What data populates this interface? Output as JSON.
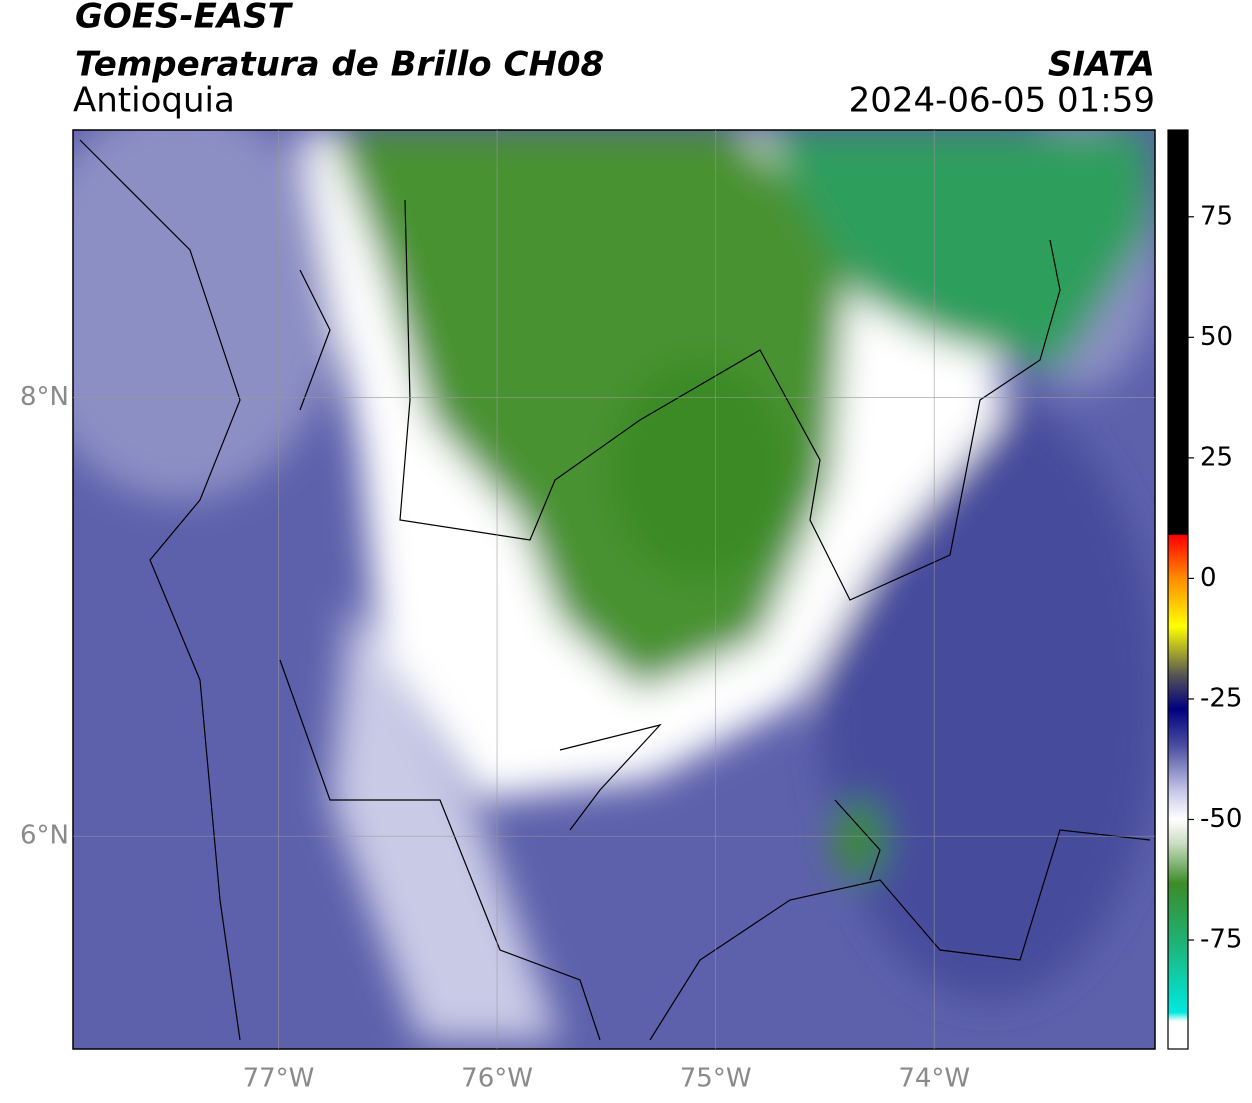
{
  "chart_data": {
    "type": "map",
    "title": "GOES-EAST",
    "subtitle": "Temperatura de Brillo CH08",
    "region": "Antioquia",
    "source": "SIATA",
    "timestamp": "2024-06-05 01:59",
    "xlim": [
      -77.94,
      -72.99
    ],
    "ylim": [
      5.03,
      9.22
    ],
    "xticks": [
      {
        "value": -77,
        "label": "77°W"
      },
      {
        "value": -76,
        "label": "76°W"
      },
      {
        "value": -75,
        "label": "75°W"
      },
      {
        "value": -74,
        "label": "74°W"
      }
    ],
    "yticks": [
      {
        "value": 8,
        "label": "8°N"
      },
      {
        "value": 6,
        "label": "6°N"
      }
    ],
    "grid": true,
    "colorbar_lim": [
      -97.6,
      93
    ],
    "colorbar_ticks": [
      75,
      50,
      25,
      0,
      -25,
      -50,
      -75
    ]
  }
}
